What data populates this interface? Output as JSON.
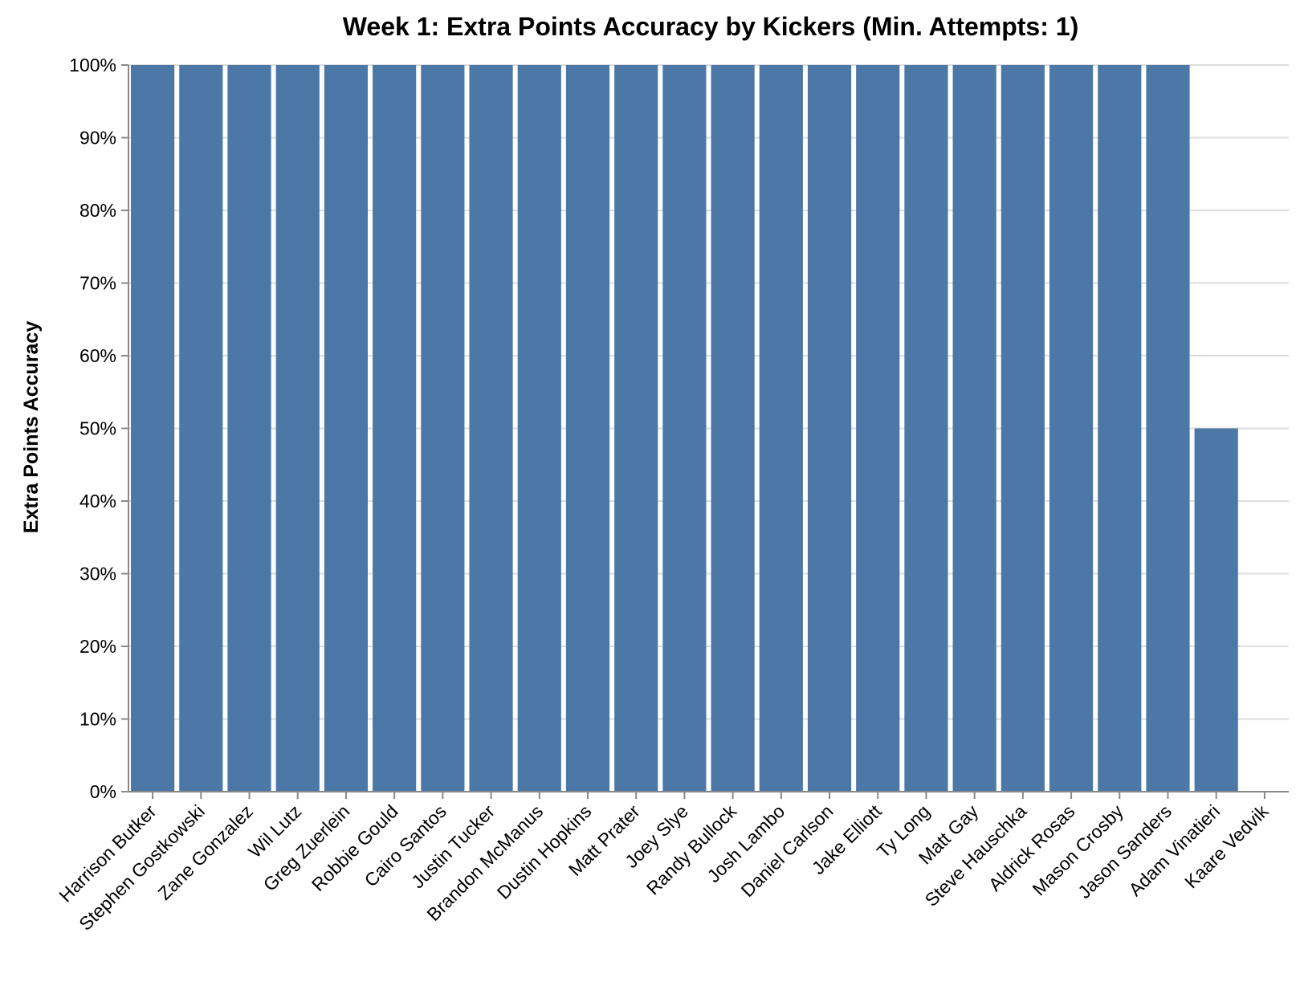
{
  "chart_data": {
    "type": "bar",
    "title": "Week 1: Extra Points Accuracy by Kickers (Min. Attempts: 1)",
    "xlabel": "",
    "ylabel": "Extra Points Accuracy",
    "ylim": [
      0,
      1
    ],
    "y_format": "percent",
    "y_ticks": [
      0,
      0.1,
      0.2,
      0.3,
      0.4,
      0.5,
      0.6,
      0.7,
      0.8,
      0.9,
      1.0
    ],
    "grid": true,
    "bar_color": "#4c78a8",
    "categories": [
      "Harrison Butker",
      "Stephen Gostkowski",
      "Zane Gonzalez",
      "Wil Lutz",
      "Greg Zuerlein",
      "Robbie Gould",
      "Cairo Santos",
      "Justin Tucker",
      "Brandon McManus",
      "Dustin Hopkins",
      "Matt Prater",
      "Joey Slye",
      "Randy Bullock",
      "Josh Lambo",
      "Daniel Carlson",
      "Jake Elliott",
      "Ty Long",
      "Matt Gay",
      "Steve Hauschka",
      "Aldrick Rosas",
      "Mason Crosby",
      "Jason Sanders",
      "Adam Vinatieri",
      "Kaare Vedvik"
    ],
    "values": [
      1,
      1,
      1,
      1,
      1,
      1,
      1,
      1,
      1,
      1,
      1,
      1,
      1,
      1,
      1,
      1,
      1,
      1,
      1,
      1,
      1,
      1,
      0.5,
      0
    ]
  }
}
